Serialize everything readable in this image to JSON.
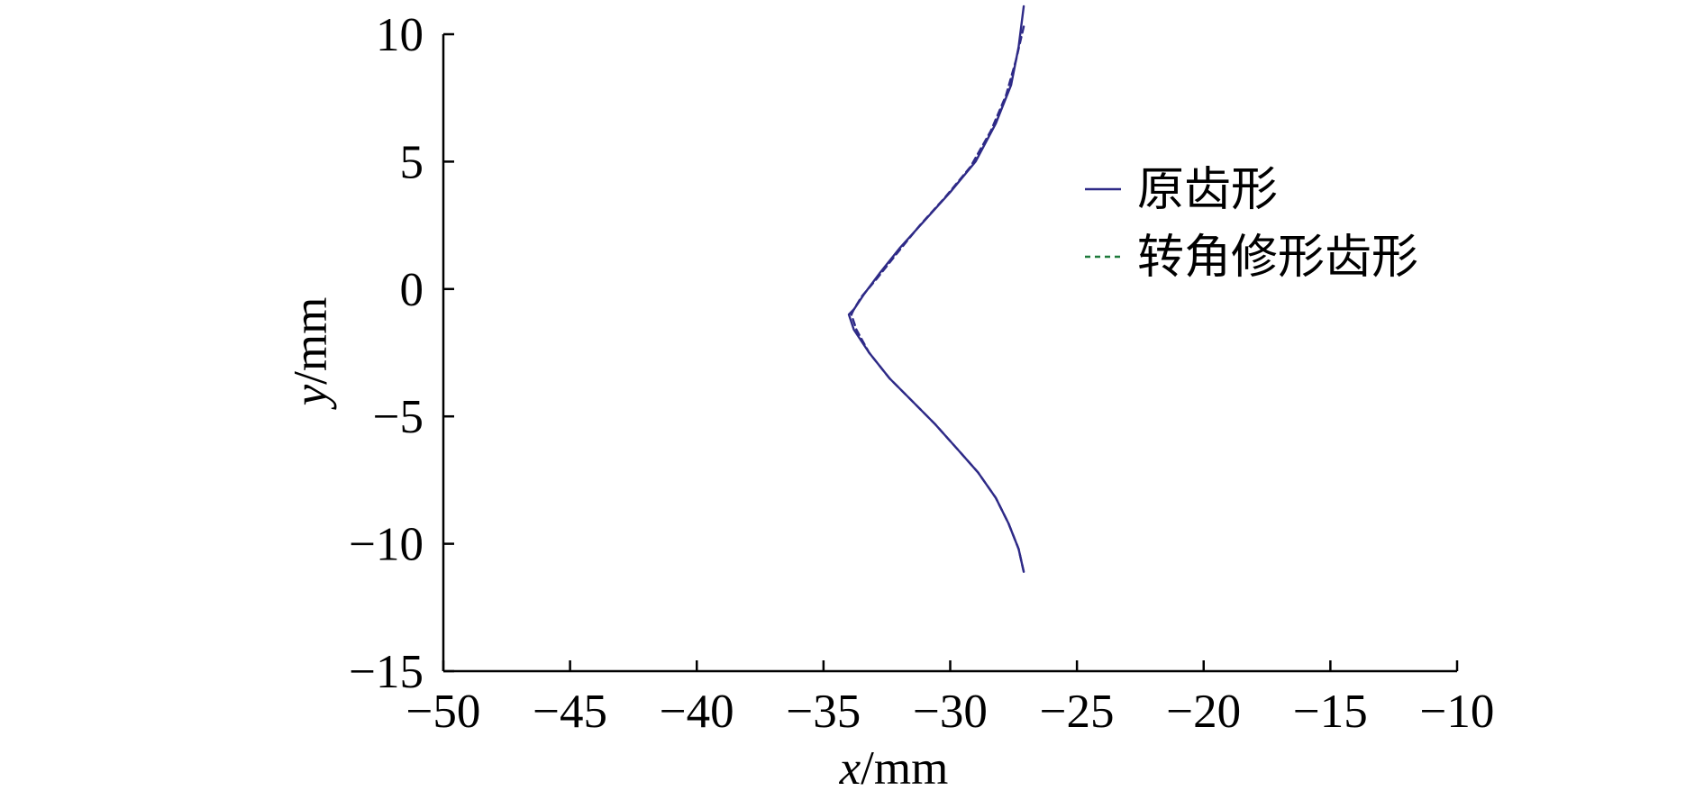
{
  "chart_data": {
    "type": "line",
    "xlabel_var": "x",
    "xlabel_unit": "/mm",
    "ylabel_var": "y",
    "ylabel_unit": "/mm",
    "xlim": [
      -50,
      -10
    ],
    "ylim": [
      -15,
      10
    ],
    "x_ticks": [
      -50,
      -45,
      -40,
      -35,
      -30,
      -25,
      -20,
      -15,
      -10
    ],
    "y_ticks": [
      -15,
      -10,
      -5,
      0,
      5,
      10
    ],
    "x_tick_labels": [
      "−50",
      "−45",
      "−40",
      "−35",
      "−30",
      "−25",
      "−20",
      "−15",
      "−10"
    ],
    "y_tick_labels": [
      "−15",
      "−10",
      "−5",
      "0",
      "5",
      "10"
    ],
    "legend_position": "top-right",
    "series": [
      {
        "name": "原齿形",
        "color": "#2e2a87",
        "dash": "solid",
        "x": [
          -27.1,
          -27.3,
          -27.6,
          -28.2,
          -29.0,
          -30.0,
          -31.0,
          -32.0,
          -32.8,
          -33.4,
          -33.8,
          -34.0,
          -33.8,
          -33.2,
          -32.4,
          -31.5,
          -30.6,
          -29.7,
          -28.9,
          -28.2,
          -27.7,
          -27.3,
          -27.1
        ],
        "y": [
          11.1,
          9.5,
          8.0,
          6.5,
          5.0,
          3.8,
          2.7,
          1.6,
          0.6,
          -0.2,
          -0.8,
          -1.0,
          -1.6,
          -2.5,
          -3.5,
          -4.4,
          -5.3,
          -6.3,
          -7.2,
          -8.2,
          -9.2,
          -10.2,
          -11.1
        ]
      },
      {
        "name": "转角修形齿形",
        "color": "#2e2a87",
        "legend_color": "#1e7a3c",
        "dash": "dashed",
        "x": [
          -27.1,
          -27.4,
          -27.8,
          -28.4,
          -29.2,
          -30.2,
          -31.2,
          -32.1,
          -32.9,
          -33.5,
          -33.8,
          -33.9,
          -33.7,
          -33.2,
          -32.4,
          -31.5,
          -30.6,
          -29.7,
          -28.9,
          -28.2,
          -27.7,
          -27.3,
          -27.1
        ],
        "y": [
          10.3,
          9.0,
          7.6,
          6.2,
          4.8,
          3.6,
          2.5,
          1.4,
          0.4,
          -0.3,
          -0.8,
          -1.0,
          -1.6,
          -2.5,
          -3.5,
          -4.4,
          -5.3,
          -6.3,
          -7.2,
          -8.2,
          -9.2,
          -10.2,
          -11.1
        ]
      }
    ]
  }
}
